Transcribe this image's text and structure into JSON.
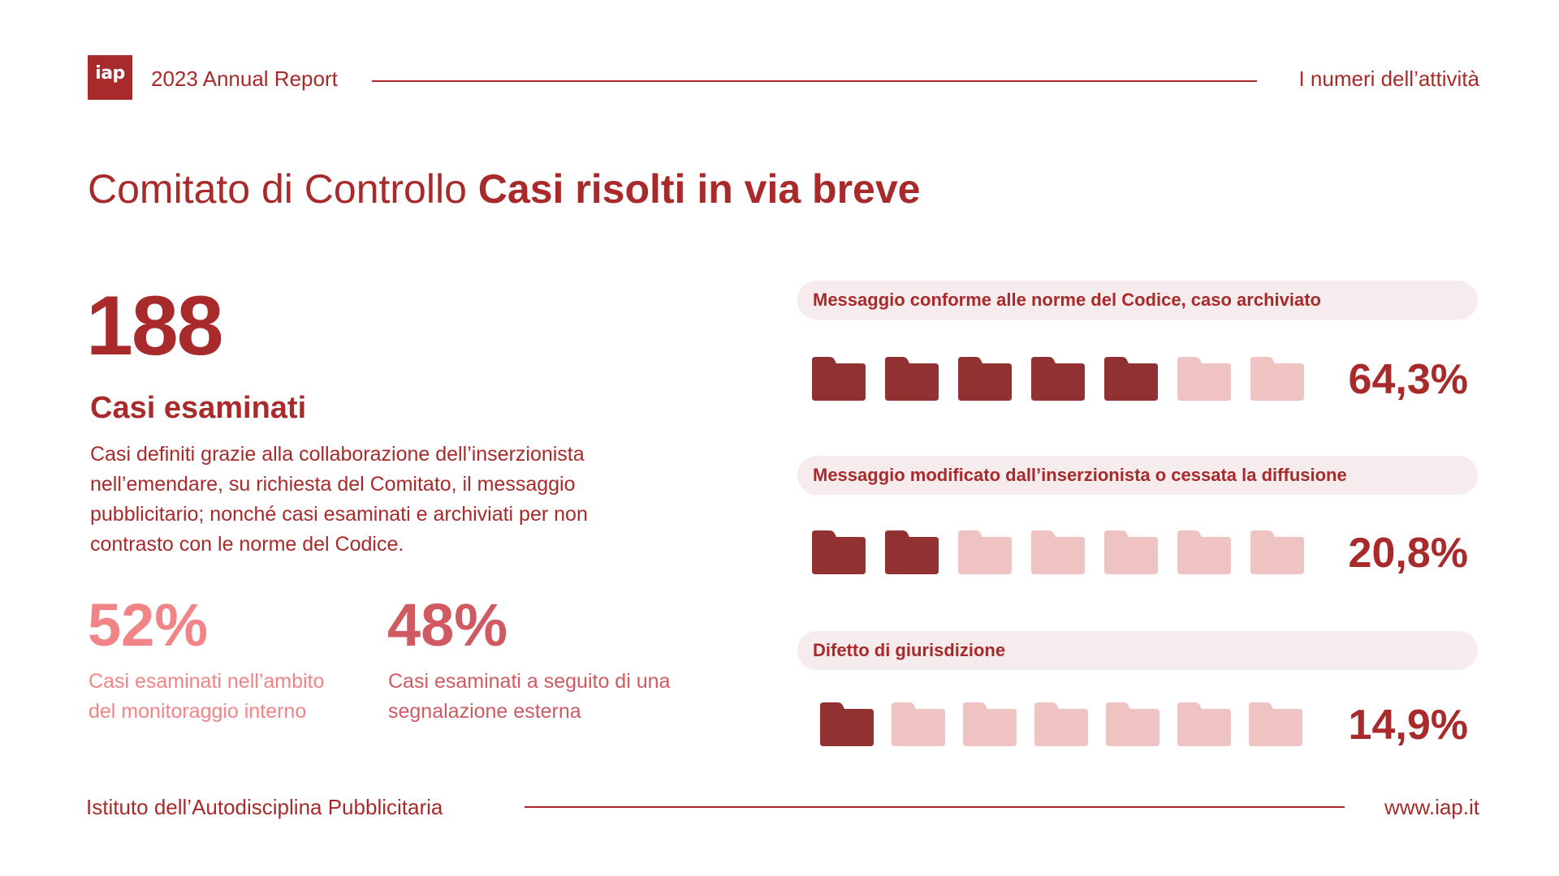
{
  "header": {
    "logo_text": "iap",
    "report_title": "2023 Annual Report",
    "section": "I numeri dell’attività"
  },
  "title": {
    "regular": "Comitato di Controllo",
    "bold": "Casi risolti in via breve"
  },
  "summary": {
    "total": "188",
    "total_label": "Casi esaminati",
    "description": "Casi definiti grazie alla collaborazione dell’inserzionista nell’emendare, su richiesta del Comitato, il messaggio pubblicitario; nonché casi esaminati e archiviati per non contrasto con le norme del Codice.",
    "internal_pct": "52%",
    "internal_label": "Casi esaminati nell’ambito del monitoraggio interno",
    "external_pct": "48%",
    "external_label": "Casi esaminati a seguito di una segnalazione esterna"
  },
  "colors": {
    "primary": "#a82a2a",
    "folder_filled": "#923132",
    "folder_empty": "#efc3c2",
    "pill_bg": "#f7eced",
    "pink": "#f08486",
    "rose": "#d05a62"
  },
  "icons": {
    "folder": "folder-icon"
  },
  "categories": [
    {
      "label": "Messaggio conforme alle norme del Codice, caso archiviato",
      "percent_text": "64,3%",
      "filled": 5,
      "total": 7
    },
    {
      "label": "Messaggio modificato dall’inserzionista o cessata la diffusione",
      "percent_text": "20,8%",
      "filled": 2,
      "total": 7
    },
    {
      "label": "Difetto di giurisdizione",
      "percent_text": "14,9%",
      "filled": 1,
      "total": 7
    }
  ],
  "footer": {
    "org": "Istituto dell’Autodisciplina Pubblicitaria",
    "url": "www.iap.it"
  }
}
